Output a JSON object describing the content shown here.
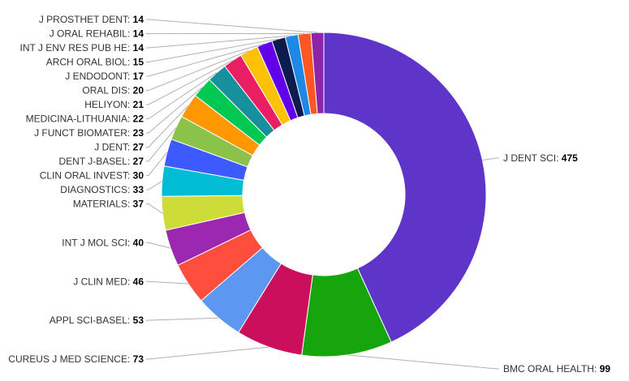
{
  "chart_data": {
    "type": "pie",
    "donut": true,
    "legend": "none",
    "series": [
      {
        "label": "J DENT SCI",
        "value": 475,
        "color": "#5e35c8"
      },
      {
        "label": "BMC ORAL HEALTH",
        "value": 99,
        "color": "#16a50c"
      },
      {
        "label": "CUREUS J MED SCIENCE",
        "value": 73,
        "color": "#cc0f5c"
      },
      {
        "label": "APPL SCI-BASEL",
        "value": 53,
        "color": "#5c97f2"
      },
      {
        "label": "J CLIN MED",
        "value": 46,
        "color": "#ff4e3e"
      },
      {
        "label": "INT J MOL SCI",
        "value": 40,
        "color": "#9c27b0"
      },
      {
        "label": "MATERIALS",
        "value": 37,
        "color": "#cddc39"
      },
      {
        "label": "DIAGNOSTICS",
        "value": 33,
        "color": "#00bcd4"
      },
      {
        "label": "CLIN ORAL INVEST",
        "value": 30,
        "color": "#3d5afe"
      },
      {
        "label": "DENT J-BASEL",
        "value": 27,
        "color": "#8bc34a"
      },
      {
        "label": "J DENT",
        "value": 27,
        "color": "#ff9800"
      },
      {
        "label": "J FUNCT BIOMATER",
        "value": 23,
        "color": "#00c853"
      },
      {
        "label": "MEDICINA-LITHUANIA",
        "value": 22,
        "color": "#17909e"
      },
      {
        "label": "HELIYON",
        "value": 21,
        "color": "#e91e63"
      },
      {
        "label": "ORAL DIS",
        "value": 20,
        "color": "#ffc107"
      },
      {
        "label": "J ENDODONT",
        "value": 17,
        "color": "#6200ea"
      },
      {
        "label": "ARCH ORAL BIOL",
        "value": 15,
        "color": "#0d1b4f"
      },
      {
        "label": "INT J ENV RES PUB HE",
        "value": 14,
        "color": "#1e88e5"
      },
      {
        "label": "J ORAL REHABIL",
        "value": 14,
        "color": "#ff5722"
      },
      {
        "label": "J PROSTHET DENT",
        "value": 14,
        "color": "#8e24aa"
      }
    ]
  }
}
